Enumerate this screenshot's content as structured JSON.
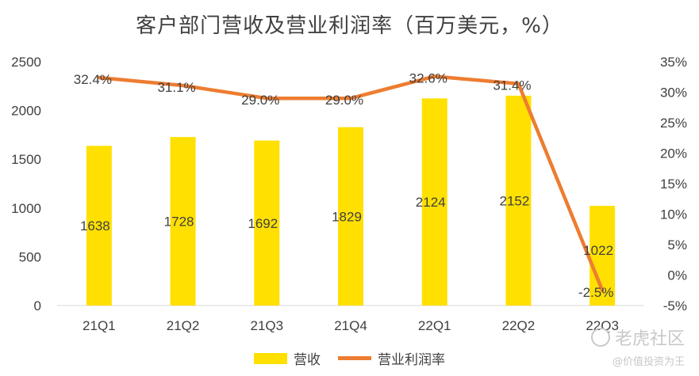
{
  "chart_data": {
    "type": "bar",
    "title": "客户部门营收及营业利润率（百万美元，%）",
    "categories": [
      "21Q1",
      "21Q2",
      "21Q3",
      "21Q4",
      "22Q1",
      "22Q2",
      "22Q3"
    ],
    "series": [
      {
        "name": "营收",
        "type": "bar",
        "axis": "left",
        "color": "#FFE000",
        "values": [
          1638,
          1728,
          1692,
          1829,
          2124,
          2152,
          1022
        ],
        "labels": [
          "1638",
          "1728",
          "1692",
          "1829",
          "2124",
          "2152",
          "1022"
        ]
      },
      {
        "name": "营业利润率",
        "type": "line",
        "axis": "right",
        "color": "#ED7D31",
        "values": [
          32.4,
          31.1,
          29.0,
          29.0,
          32.6,
          31.4,
          -2.5
        ],
        "labels": [
          "32.4%",
          "31.1%",
          "29.0%",
          "29.0%",
          "32.6%",
          "31.4%",
          "-2.5%"
        ]
      }
    ],
    "y_left": {
      "min": 0,
      "max": 2500,
      "ticks": [
        "0",
        "500",
        "1000",
        "1500",
        "2000",
        "2500"
      ],
      "tick_values": [
        0,
        500,
        1000,
        1500,
        2000,
        2500
      ]
    },
    "y_right": {
      "min": -5,
      "max": 35,
      "ticks": [
        "-5%",
        "0%",
        "5%",
        "10%",
        "15%",
        "20%",
        "25%",
        "30%",
        "35%"
      ],
      "tick_values": [
        -5,
        0,
        5,
        10,
        15,
        20,
        25,
        30,
        35
      ]
    },
    "grid": false,
    "legend_position": "bottom"
  },
  "watermark": {
    "brand": "老虎社区",
    "sub": "@价值投资为王"
  }
}
